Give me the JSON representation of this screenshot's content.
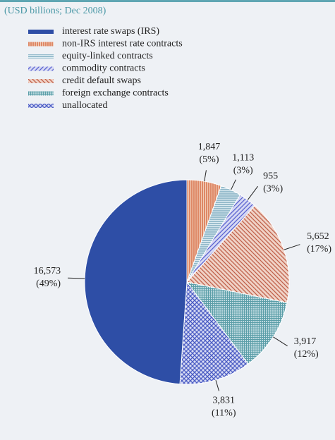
{
  "chart_data": {
    "type": "pie",
    "subtitle": "(USD billions; Dec 2008)",
    "series": [
      {
        "name": "interest rate swaps (IRS)",
        "color": "#2e4ea6",
        "background": "#2e4ea6",
        "pattern": "solid"
      },
      {
        "name": "non-IRS interest rate contracts",
        "color": "#d4623a",
        "background": "#f1cdb8",
        "pattern": "vertical"
      },
      {
        "name": "equity-linked contracts",
        "color": "#6fa2b8",
        "background": "#dcebf1",
        "pattern": "horizontal"
      },
      {
        "name": "commodity contracts",
        "color": "#5a62d0",
        "background": "#d6d9f4",
        "pattern": "diagonal-up"
      },
      {
        "name": "credit default swaps",
        "color": "#c0604a",
        "background": "#f0d2c6",
        "pattern": "diagonal-down"
      },
      {
        "name": "foreign exchange contracts",
        "color": "#5b9ea8",
        "background": "#dcedf0",
        "pattern": "grid"
      },
      {
        "name": "unallocated",
        "color": "#4b5cc4",
        "background": "#d8dcf4",
        "pattern": "crosshatch"
      }
    ],
    "values": [
      16573,
      1847,
      1113,
      955,
      5652,
      3917,
      3831
    ],
    "value_labels": [
      "16,573",
      "1,847",
      "1,113",
      "955",
      "5,652",
      "3,917",
      "3,831"
    ],
    "percentages": [
      49,
      5,
      3,
      3,
      17,
      12,
      11
    ],
    "percentage_labels": [
      "(49%)",
      "(5%)",
      "(3%)",
      "(3%)",
      "(17%)",
      "(12%)",
      "(11%)"
    ]
  }
}
